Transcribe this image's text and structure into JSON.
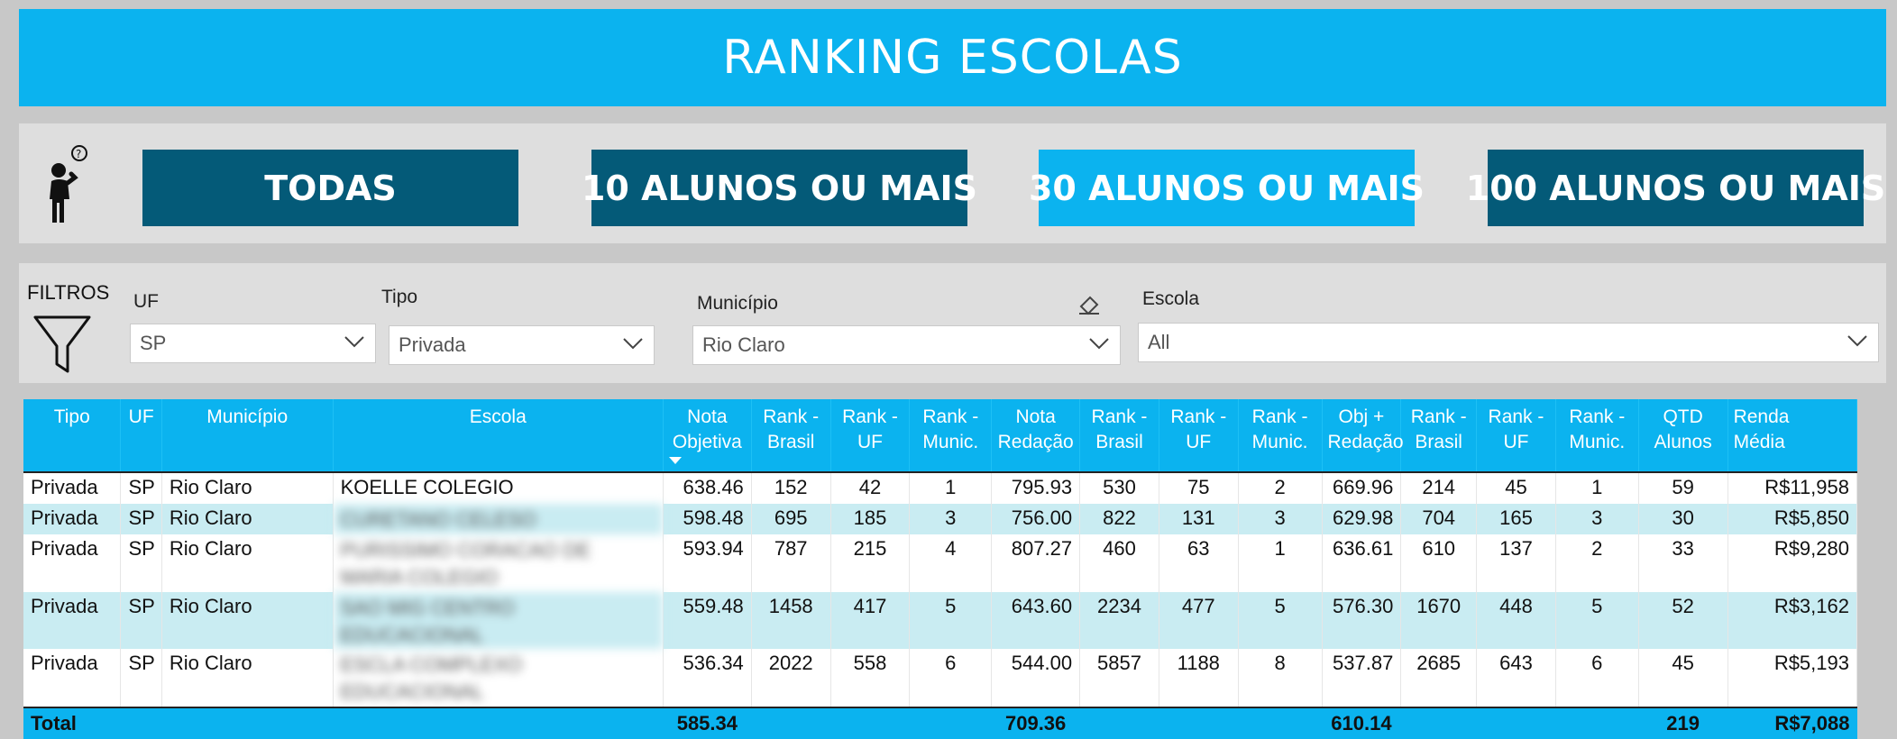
{
  "header": {
    "title": "RANKING ESCOLAS"
  },
  "buttons": [
    {
      "label": "TODAS"
    },
    {
      "label": "10 ALUNOS OU MAIS"
    },
    {
      "label": "30 ALUNOS OU MAIS"
    },
    {
      "label": "100 ALUNOS OU MAIS"
    }
  ],
  "filters": {
    "title": "FILTROS",
    "uf": {
      "label": "UF",
      "value": "SP"
    },
    "tipo": {
      "label": "Tipo",
      "value": "Privada"
    },
    "municipio": {
      "label": "Município",
      "value": "Rio Claro"
    },
    "escola": {
      "label": "Escola",
      "value": "All"
    }
  },
  "colors": {
    "accent": "#0bb3ef",
    "dark_button": "#045a78",
    "row_alt": "#c9ecf2"
  },
  "icons": [
    "thinking-person-icon",
    "funnel-icon",
    "eraser-icon",
    "chevron-down-icon",
    "sort-descending-icon"
  ],
  "table": {
    "columns": [
      [
        "Tipo"
      ],
      [
        "UF"
      ],
      [
        "Município"
      ],
      [
        "Escola"
      ],
      [
        "Nota",
        "Objetiva"
      ],
      [
        "Rank -",
        "Brasil"
      ],
      [
        "Rank -",
        "UF"
      ],
      [
        "Rank -",
        "Munic."
      ],
      [
        "Nota",
        "Redação"
      ],
      [
        "Rank -",
        "Brasil"
      ],
      [
        "Rank -",
        "UF"
      ],
      [
        "Rank -",
        "Munic."
      ],
      [
        "Obj +",
        "Redação"
      ],
      [
        "Rank -",
        "Brasil"
      ],
      [
        "Rank -",
        "UF"
      ],
      [
        "Rank -",
        "Munic."
      ],
      [
        "QTD",
        "Alunos"
      ],
      [
        "Renda",
        "Média"
      ]
    ],
    "rows": [
      [
        "Privada",
        "SP",
        "Rio Claro",
        "KOELLE COLEGIO",
        "638.46",
        "152",
        "42",
        "1",
        "795.93",
        "530",
        "75",
        "2",
        "669.96",
        "214",
        "45",
        "1",
        "59",
        "R$11,958"
      ],
      [
        "Privada",
        "SP",
        "Rio Claro",
        "CURETANO CELESO",
        "598.48",
        "695",
        "185",
        "3",
        "756.00",
        "822",
        "131",
        "3",
        "629.98",
        "704",
        "165",
        "3",
        "30",
        "R$5,850"
      ],
      [
        "Privada",
        "SP",
        "Rio Claro",
        "PURISSIMO CORACAO DE MARIA COLEGIO",
        "593.94",
        "787",
        "215",
        "4",
        "807.27",
        "460",
        "63",
        "1",
        "636.61",
        "610",
        "137",
        "2",
        "33",
        "R$9,280"
      ],
      [
        "Privada",
        "SP",
        "Rio Claro",
        "SAO MIG CENTRO EDUCACIONAL",
        "559.48",
        "1458",
        "417",
        "5",
        "643.60",
        "2234",
        "477",
        "5",
        "576.30",
        "1670",
        "448",
        "5",
        "52",
        "R$3,162"
      ],
      [
        "Privada",
        "SP",
        "Rio Claro",
        "ESCLA COMPLEXO EDUCACIONAL",
        "536.34",
        "2022",
        "558",
        "6",
        "544.00",
        "5857",
        "1188",
        "8",
        "537.87",
        "2685",
        "643",
        "6",
        "45",
        "R$5,193"
      ]
    ],
    "total": {
      "label": "Total",
      "nota_objetiva": "585.34",
      "nota_redacao": "709.36",
      "obj_redacao": "610.14",
      "qtd_alunos": "219",
      "renda_media": "R$7,088"
    }
  }
}
